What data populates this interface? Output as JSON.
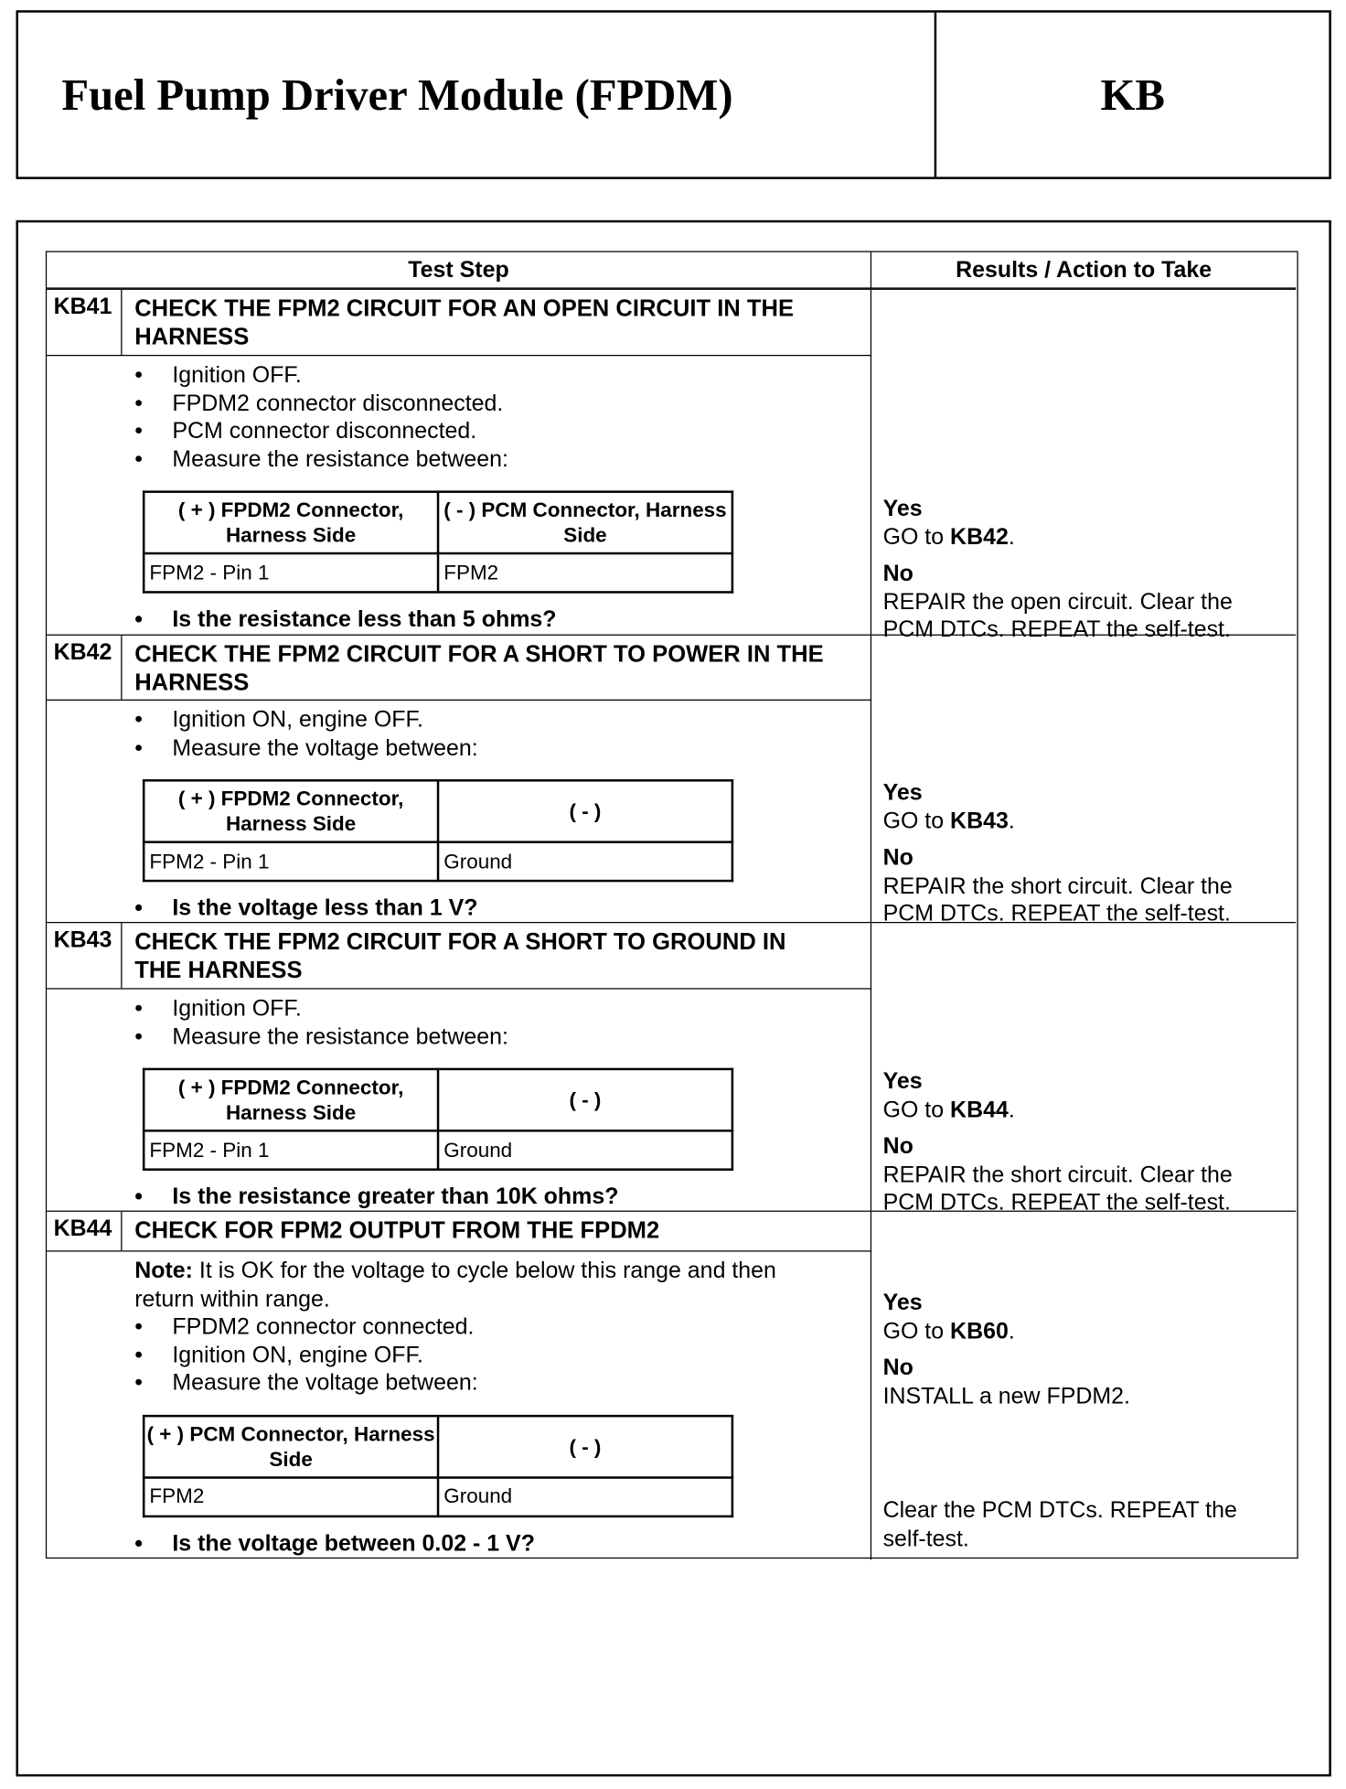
{
  "header": {
    "title": "Fuel Pump Driver Module (FPDM)",
    "code": "KB"
  },
  "table": {
    "col_test": "Test Step",
    "col_results": "Results / Action to Take"
  },
  "steps": [
    {
      "id": "KB41",
      "title": "CHECK THE FPM2 CIRCUIT FOR AN OPEN CIRCUIT IN THE HARNESS",
      "bullets": [
        "Ignition OFF.",
        "FPDM2 connector disconnected.",
        "PCM connector disconnected.",
        "Measure the resistance between:"
      ],
      "measure": {
        "h1": "( + ) FPDM2 Connector, Harness Side",
        "h2": "( - ) PCM Connector, Harness Side",
        "d1": "FPM2 - Pin 1",
        "d2": "FPM2"
      },
      "question": "Is the resistance less than 5 ohms?",
      "yes_label": "Yes",
      "yes_pre": "GO to ",
      "yes_target": "KB42",
      "yes_post": ".",
      "no_label": "No",
      "no_text": "REPAIR the open circuit. Clear the PCM DTCs. REPEAT the self-test."
    },
    {
      "id": "KB42",
      "title": "CHECK THE FPM2 CIRCUIT FOR A SHORT TO POWER IN THE HARNESS",
      "bullets": [
        "Ignition ON, engine OFF.",
        "Measure the voltage between:"
      ],
      "measure": {
        "h1": "( + ) FPDM2 Connector, Harness Side",
        "h2": "( - )",
        "d1": "FPM2 - Pin 1",
        "d2": "Ground"
      },
      "question": "Is the voltage less than 1 V?",
      "yes_label": "Yes",
      "yes_pre": "GO to ",
      "yes_target": "KB43",
      "yes_post": ".",
      "no_label": "No",
      "no_text": "REPAIR the short circuit. Clear the PCM DTCs. REPEAT the self-test."
    },
    {
      "id": "KB43",
      "title": "CHECK THE FPM2 CIRCUIT FOR A SHORT TO GROUND IN THE HARNESS",
      "bullets": [
        "Ignition OFF.",
        "Measure the resistance between:"
      ],
      "measure": {
        "h1": "( + ) FPDM2 Connector, Harness Side",
        "h2": "( - )",
        "d1": "FPM2 - Pin 1",
        "d2": "Ground"
      },
      "question": "Is the resistance greater than 10K ohms?",
      "yes_label": "Yes",
      "yes_pre": "GO to ",
      "yes_target": "KB44",
      "yes_post": ".",
      "no_label": "No",
      "no_text": "REPAIR the short circuit. Clear the PCM DTCs. REPEAT the self-test."
    },
    {
      "id": "KB44",
      "title": "CHECK FOR FPM2 OUTPUT FROM THE FPDM2",
      "note_label": "Note:",
      "note_text": " It is OK for the voltage to cycle below this range and then return within range.",
      "bullets": [
        "FPDM2 connector connected.",
        "Ignition ON, engine OFF.",
        "Measure the voltage between:"
      ],
      "measure": {
        "h1": "( + ) PCM Connector, Harness Side",
        "h2": "( - )",
        "d1": "FPM2",
        "d2": "Ground"
      },
      "question": "Is the voltage between 0.02 - 1 V?",
      "yes_label": "Yes",
      "yes_pre": "GO to ",
      "yes_target": "KB60",
      "yes_post": ".",
      "no_label": "No",
      "no_text": "INSTALL a new FPDM2.",
      "footer": "Clear the PCM DTCs. REPEAT the self-test."
    }
  ]
}
